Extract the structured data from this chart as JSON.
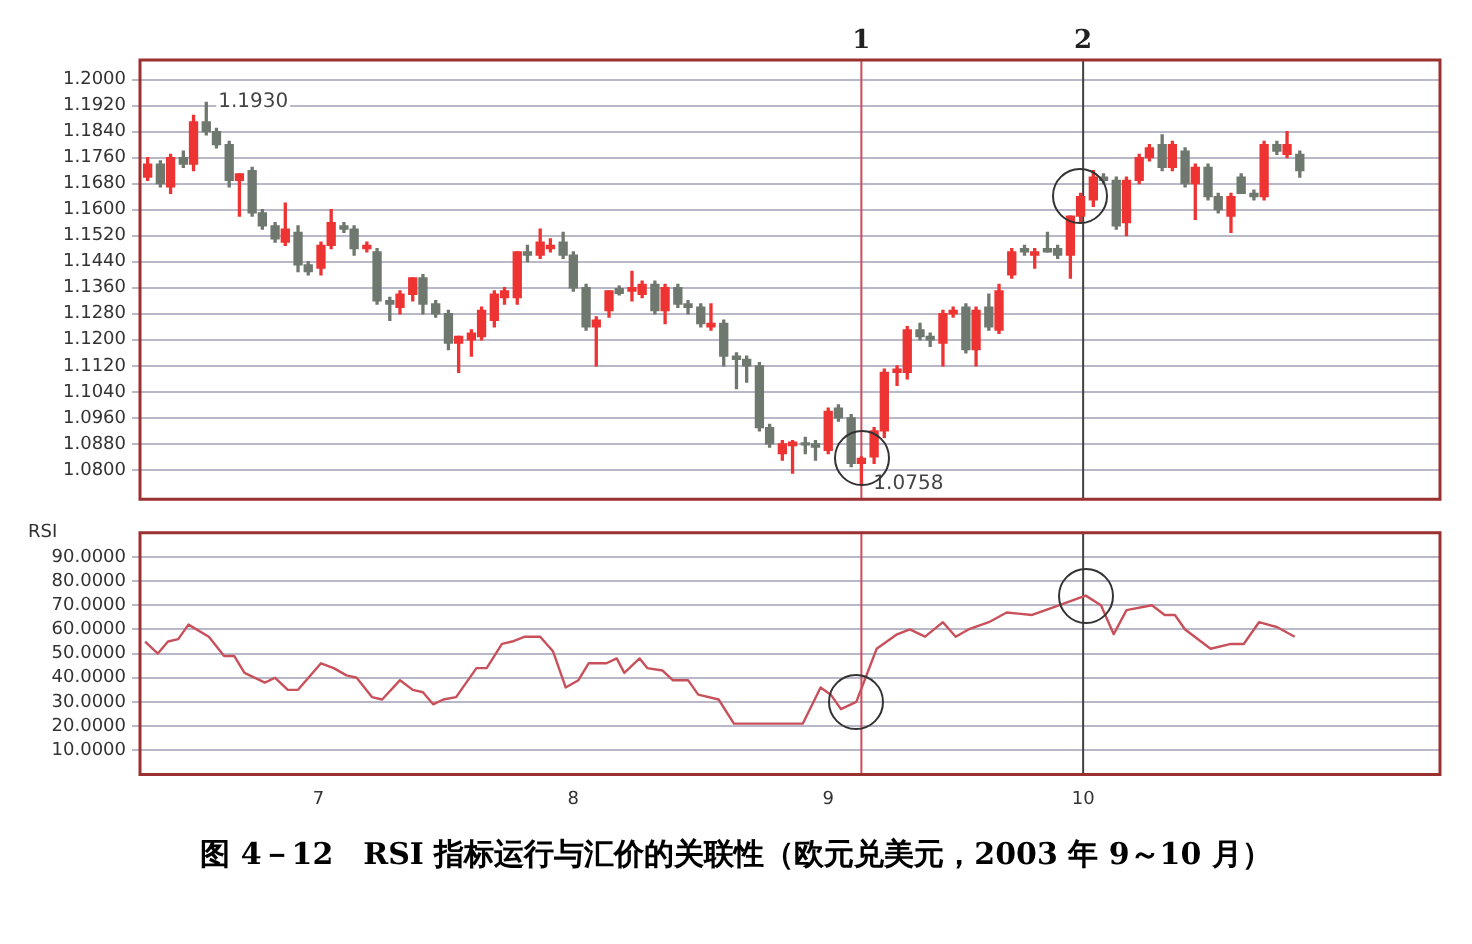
{
  "chart_data": [
    {
      "type": "candlestick",
      "tick_labels": "y",
      "grid": "y",
      "xlim": [
        6.3,
        11.4
      ],
      "xticks": [
        7,
        8,
        9,
        10
      ],
      "ylim": [
        1.071,
        1.206
      ],
      "yticks": [
        {
          "value": 1.08,
          "label": "1.0800"
        },
        {
          "value": 1.088,
          "label": "1.0880"
        },
        {
          "value": 1.096,
          "label": "1.0960"
        },
        {
          "value": 1.104,
          "label": "1.1040"
        },
        {
          "value": 1.112,
          "label": "1.1120"
        },
        {
          "value": 1.12,
          "label": "1.1200"
        },
        {
          "value": 1.128,
          "label": "1.1280"
        },
        {
          "value": 1.136,
          "label": "1.1360"
        },
        {
          "value": 1.144,
          "label": "1.1440"
        },
        {
          "value": 1.152,
          "label": "1.1520"
        },
        {
          "value": 1.16,
          "label": "1.1600"
        },
        {
          "value": 1.168,
          "label": "1.1680"
        },
        {
          "value": 1.176,
          "label": "1.1760"
        },
        {
          "value": 1.184,
          "label": "1.1840"
        },
        {
          "value": 1.192,
          "label": "1.1920"
        },
        {
          "value": 1.2,
          "label": "1.2000"
        }
      ],
      "x": [
        6.33,
        6.38,
        6.42,
        6.47,
        6.51,
        6.56,
        6.6,
        6.65,
        6.69,
        6.74,
        6.78,
        6.83,
        6.87,
        6.92,
        6.96,
        7.01,
        7.05,
        7.1,
        7.14,
        7.19,
        7.23,
        7.28,
        7.32,
        7.37,
        7.41,
        7.46,
        7.51,
        7.55,
        7.6,
        7.64,
        7.69,
        7.73,
        7.78,
        7.82,
        7.87,
        7.91,
        7.96,
        8.0,
        8.05,
        8.09,
        8.14,
        8.18,
        8.23,
        8.27,
        8.32,
        8.36,
        8.41,
        8.45,
        8.5,
        8.54,
        8.59,
        8.64,
        8.68,
        8.73,
        8.77,
        8.82,
        8.86,
        8.91,
        8.95,
        9.0,
        9.04,
        9.09,
        9.13,
        9.18,
        9.22,
        9.27,
        9.31,
        9.36,
        9.4,
        9.45,
        9.49,
        9.54,
        9.58,
        9.63,
        9.67,
        9.72,
        9.77,
        9.81,
        9.86,
        9.9,
        9.95,
        9.99,
        10.04,
        10.08,
        10.13,
        10.17,
        10.22,
        10.26,
        10.31,
        10.35,
        10.4,
        10.44,
        10.49,
        10.53,
        10.58,
        10.62,
        10.67,
        10.71,
        10.76,
        10.8,
        10.85
      ],
      "ohlc": [
        [
          1.17,
          1.176,
          1.169,
          1.174
        ],
        [
          1.174,
          1.175,
          1.167,
          1.168
        ],
        [
          1.167,
          1.177,
          1.165,
          1.176
        ],
        [
          1.176,
          1.178,
          1.173,
          1.174
        ],
        [
          1.174,
          1.189,
          1.172,
          1.187
        ],
        [
          1.187,
          1.193,
          1.183,
          1.184
        ],
        [
          1.184,
          1.185,
          1.179,
          1.18
        ],
        [
          1.18,
          1.181,
          1.167,
          1.169
        ],
        [
          1.169,
          1.171,
          1.158,
          1.171
        ],
        [
          1.172,
          1.173,
          1.158,
          1.159
        ],
        [
          1.159,
          1.16,
          1.154,
          1.155
        ],
        [
          1.155,
          1.156,
          1.15,
          1.151
        ],
        [
          1.15,
          1.162,
          1.149,
          1.154
        ],
        [
          1.153,
          1.155,
          1.141,
          1.143
        ],
        [
          1.143,
          1.144,
          1.14,
          1.141
        ],
        [
          1.142,
          1.15,
          1.14,
          1.149
        ],
        [
          1.149,
          1.16,
          1.148,
          1.156
        ],
        [
          1.155,
          1.156,
          1.153,
          1.154
        ],
        [
          1.154,
          1.155,
          1.146,
          1.148
        ],
        [
          1.148,
          1.15,
          1.147,
          1.149
        ],
        [
          1.147,
          1.148,
          1.131,
          1.132
        ],
        [
          1.132,
          1.133,
          1.126,
          1.131
        ],
        [
          1.13,
          1.135,
          1.128,
          1.134
        ],
        [
          1.134,
          1.139,
          1.132,
          1.139
        ],
        [
          1.139,
          1.14,
          1.128,
          1.131
        ],
        [
          1.131,
          1.132,
          1.127,
          1.128
        ],
        [
          1.128,
          1.129,
          1.117,
          1.119
        ],
        [
          1.119,
          1.121,
          1.11,
          1.121
        ],
        [
          1.12,
          1.123,
          1.115,
          1.122
        ],
        [
          1.121,
          1.13,
          1.12,
          1.129
        ],
        [
          1.126,
          1.135,
          1.124,
          1.134
        ],
        [
          1.133,
          1.136,
          1.131,
          1.135
        ],
        [
          1.133,
          1.147,
          1.131,
          1.147
        ],
        [
          1.147,
          1.149,
          1.144,
          1.146
        ],
        [
          1.146,
          1.154,
          1.145,
          1.15
        ],
        [
          1.148,
          1.151,
          1.147,
          1.149
        ],
        [
          1.15,
          1.153,
          1.145,
          1.146
        ],
        [
          1.146,
          1.147,
          1.135,
          1.136
        ],
        [
          1.136,
          1.137,
          1.123,
          1.124
        ],
        [
          1.124,
          1.127,
          1.112,
          1.126
        ],
        [
          1.129,
          1.135,
          1.127,
          1.135
        ],
        [
          1.1357,
          1.1365,
          1.1338,
          1.1343
        ],
        [
          1.135,
          1.141,
          1.132,
          1.136
        ],
        [
          1.134,
          1.138,
          1.133,
          1.137
        ],
        [
          1.137,
          1.138,
          1.128,
          1.129
        ],
        [
          1.129,
          1.137,
          1.125,
          1.136
        ],
        [
          1.136,
          1.137,
          1.13,
          1.131
        ],
        [
          1.131,
          1.132,
          1.128,
          1.13
        ],
        [
          1.13,
          1.131,
          1.124,
          1.125
        ],
        [
          1.124,
          1.131,
          1.123,
          1.125
        ],
        [
          1.125,
          1.126,
          1.112,
          1.115
        ],
        [
          1.115,
          1.116,
          1.105,
          1.114
        ],
        [
          1.114,
          1.115,
          1.107,
          1.112
        ],
        [
          1.112,
          1.113,
          1.092,
          1.093
        ],
        [
          1.093,
          1.094,
          1.087,
          1.088
        ],
        [
          1.085,
          1.089,
          1.083,
          1.088
        ],
        [
          1.0875,
          1.089,
          1.079,
          1.0885
        ],
        [
          1.0883,
          1.09,
          1.085,
          1.0877
        ],
        [
          1.088,
          1.089,
          1.083,
          1.087
        ],
        [
          1.086,
          1.099,
          1.085,
          1.098
        ],
        [
          1.099,
          1.1,
          1.095,
          1.096
        ],
        [
          1.096,
          1.097,
          1.081,
          1.082
        ],
        [
          1.082,
          1.084,
          1.0758,
          1.0835
        ],
        [
          1.084,
          1.093,
          1.082,
          1.092
        ],
        [
          1.092,
          1.111,
          1.09,
          1.11
        ],
        [
          1.11,
          1.112,
          1.106,
          1.111
        ],
        [
          1.11,
          1.124,
          1.108,
          1.123
        ],
        [
          1.123,
          1.125,
          1.12,
          1.121
        ],
        [
          1.121,
          1.122,
          1.118,
          1.12
        ],
        [
          1.119,
          1.129,
          1.112,
          1.128
        ],
        [
          1.128,
          1.13,
          1.127,
          1.129
        ],
        [
          1.13,
          1.131,
          1.116,
          1.117
        ],
        [
          1.117,
          1.13,
          1.112,
          1.129
        ],
        [
          1.13,
          1.134,
          1.123,
          1.124
        ],
        [
          1.123,
          1.137,
          1.122,
          1.135
        ],
        [
          1.14,
          1.148,
          1.139,
          1.147
        ],
        [
          1.148,
          1.149,
          1.146,
          1.147
        ],
        [
          1.146,
          1.148,
          1.142,
          1.147
        ],
        [
          1.148,
          1.153,
          1.147,
          1.147
        ],
        [
          1.148,
          1.149,
          1.145,
          1.146
        ],
        [
          1.146,
          1.158,
          1.139,
          1.158
        ],
        [
          1.158,
          1.165,
          1.156,
          1.164
        ],
        [
          1.163,
          1.172,
          1.161,
          1.17
        ],
        [
          1.17,
          1.171,
          1.168,
          1.169
        ],
        [
          1.169,
          1.17,
          1.154,
          1.155
        ],
        [
          1.156,
          1.17,
          1.152,
          1.169
        ],
        [
          1.169,
          1.177,
          1.168,
          1.176
        ],
        [
          1.176,
          1.18,
          1.175,
          1.179
        ],
        [
          1.18,
          1.183,
          1.172,
          1.173
        ],
        [
          1.173,
          1.181,
          1.172,
          1.18
        ],
        [
          1.178,
          1.179,
          1.167,
          1.168
        ],
        [
          1.168,
          1.174,
          1.157,
          1.173
        ],
        [
          1.173,
          1.174,
          1.163,
          1.164
        ],
        [
          1.164,
          1.165,
          1.159,
          1.16
        ],
        [
          1.158,
          1.165,
          1.153,
          1.164
        ],
        [
          1.17,
          1.171,
          1.165,
          1.165
        ],
        [
          1.165,
          1.166,
          1.163,
          1.164
        ],
        [
          1.164,
          1.181,
          1.163,
          1.18
        ],
        [
          1.18,
          1.181,
          1.177,
          1.178
        ],
        [
          1.177,
          1.184,
          1.176,
          1.18
        ],
        [
          1.177,
          1.178,
          1.17,
          1.172
        ]
      ],
      "colors": [
        "#ee3333",
        "#6e786e",
        "#ee3333",
        "#6e786e",
        "#ee3333",
        "#6e786e",
        "#6e786e",
        "#6e786e",
        "#ee3333",
        "#6e786e",
        "#6e786e",
        "#6e786e",
        "#ee3333",
        "#6e786e",
        "#6e786e",
        "#ee3333",
        "#ee3333",
        "#6e786e",
        "#6e786e",
        "#ee3333",
        "#6e786e",
        "#6e786e",
        "#ee3333",
        "#ee3333",
        "#6e786e",
        "#6e786e",
        "#6e786e",
        "#ee3333",
        "#ee3333",
        "#ee3333",
        "#ee3333",
        "#ee3333",
        "#ee3333",
        "#6e786e",
        "#ee3333",
        "#ee3333",
        "#6e786e",
        "#6e786e",
        "#6e786e",
        "#ee3333",
        "#ee3333",
        "#6e786e",
        "#ee3333",
        "#ee3333",
        "#6e786e",
        "#ee3333",
        "#6e786e",
        "#6e786e",
        "#6e786e",
        "#ee3333",
        "#6e786e",
        "#6e786e",
        "#6e786e",
        "#6e786e",
        "#6e786e",
        "#ee3333",
        "#ee3333",
        "#6e786e",
        "#6e786e",
        "#ee3333",
        "#6e786e",
        "#6e786e",
        "#ee3333",
        "#ee3333",
        "#ee3333",
        "#ee3333",
        "#ee3333",
        "#6e786e",
        "#6e786e",
        "#ee3333",
        "#ee3333",
        "#6e786e",
        "#ee3333",
        "#6e786e",
        "#ee3333",
        "#ee3333",
        "#6e786e",
        "#ee3333",
        "#6e786e",
        "#6e786e",
        "#ee3333",
        "#ee3333",
        "#ee3333",
        "#6e786e",
        "#6e786e",
        "#ee3333",
        "#ee3333",
        "#ee3333",
        "#6e786e",
        "#ee3333",
        "#6e786e",
        "#ee3333",
        "#6e786e",
        "#6e786e",
        "#ee3333",
        "#6e786e",
        "#6e786e",
        "#ee3333",
        "#6e786e",
        "#ee3333",
        "#6e786e"
      ],
      "ref_lines": [
        {
          "axis": "x",
          "value": 9.13,
          "color": "#d04a5a"
        },
        {
          "axis": "x",
          "value": 10.0,
          "color": "#404040"
        }
      ],
      "annotations": [
        {
          "text": "1.1930",
          "x": 6.56,
          "y": 1.193
        },
        {
          "text": "1.0758",
          "x": 9.13,
          "y": 1.0758
        },
        "1",
        "2"
      ]
    },
    {
      "type": "line",
      "title": "图 4－12　RSI 指标运行与汇价的关联性（欧元兑美元，2003 年 9～10 月）",
      "ylabel": "RSI",
      "grid": "y",
      "color": "#c8505a",
      "xlim": [
        6.3,
        11.4
      ],
      "xticks": [
        7,
        8,
        9,
        10
      ],
      "ylim": [
        0,
        100
      ],
      "yticks": [
        {
          "value": 10,
          "label": "10.0000"
        },
        {
          "value": 20,
          "label": "20.0000"
        },
        {
          "value": 30,
          "label": "30.0000"
        },
        {
          "value": 40,
          "label": "40.0000"
        },
        {
          "value": 50,
          "label": "50.0000"
        },
        {
          "value": 60,
          "label": "60.0000"
        },
        {
          "value": 70,
          "label": "70.0000"
        },
        {
          "value": 80,
          "label": "80.0000"
        },
        {
          "value": 90,
          "label": "90.0000"
        }
      ],
      "x": [
        6.32,
        6.37,
        6.41,
        6.45,
        6.49,
        6.57,
        6.63,
        6.67,
        6.71,
        6.79,
        6.83,
        6.88,
        6.92,
        7.01,
        7.06,
        7.11,
        7.15,
        7.21,
        7.25,
        7.32,
        7.37,
        7.41,
        7.45,
        7.49,
        7.54,
        7.62,
        7.66,
        7.72,
        7.76,
        7.81,
        7.87,
        7.92,
        7.97,
        8.02,
        8.06,
        8.13,
        8.17,
        8.2,
        8.26,
        8.29,
        8.35,
        8.39,
        8.45,
        8.49,
        8.57,
        8.63,
        8.75,
        8.9,
        8.97,
        9.01,
        9.05,
        9.11,
        9.19,
        9.27,
        9.32,
        9.38,
        9.45,
        9.5,
        9.55,
        9.63,
        9.7,
        9.8,
        9.88,
        10.01,
        10.07,
        10.12,
        10.17,
        10.27,
        10.32,
        10.36,
        10.4,
        10.5,
        10.58,
        10.63,
        10.69,
        10.76,
        10.83
      ],
      "values": [
        55,
        50,
        55,
        56,
        62,
        57,
        49,
        49,
        42,
        38,
        40,
        35,
        35,
        46,
        44,
        41,
        40,
        32,
        31,
        39,
        35,
        34,
        29,
        31,
        32,
        44,
        44,
        54,
        55,
        57,
        57,
        51,
        36,
        39,
        46,
        46,
        48,
        42,
        48,
        44,
        43,
        39,
        39,
        33,
        31,
        21,
        21,
        21,
        36,
        33,
        27,
        30,
        52,
        58,
        60,
        57,
        63,
        57,
        60,
        63,
        67,
        66,
        69,
        74,
        70,
        58,
        68,
        70,
        66,
        66,
        60,
        52,
        54,
        54,
        63,
        61,
        57
      ],
      "ref_lines": [
        {
          "axis": "x",
          "value": 9.13,
          "color": "#d04a5a"
        },
        {
          "axis": "x",
          "value": 10.0,
          "color": "#404040"
        }
      ]
    }
  ]
}
